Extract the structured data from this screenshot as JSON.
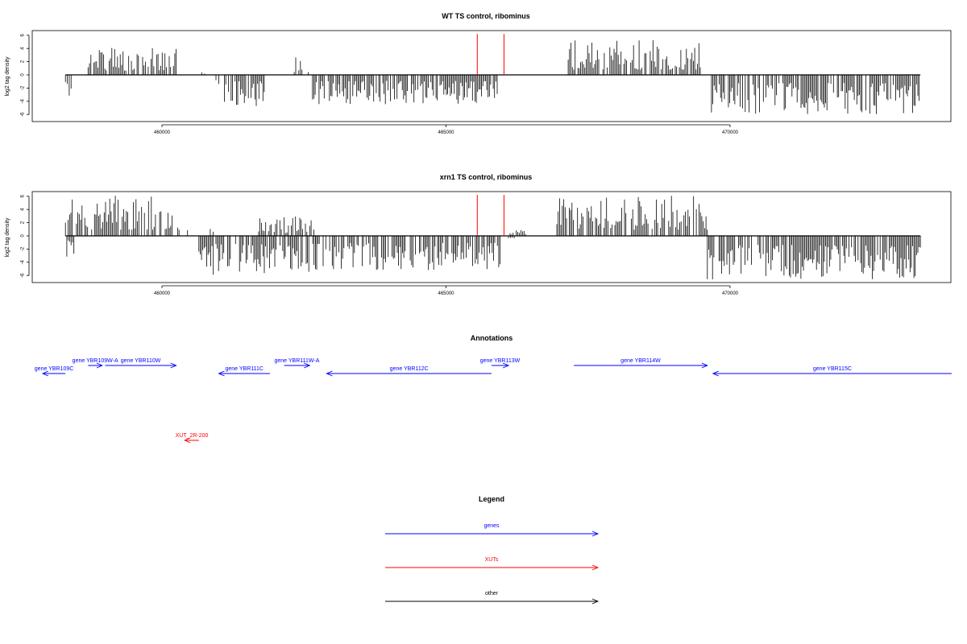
{
  "chart_data": [
    {
      "type": "bar",
      "title": "WT TS control, ribominus",
      "xlabel": "",
      "ylabel": "log2 tag density",
      "xlim": [
        457700,
        473900
      ],
      "ylim": [
        -7,
        7
      ],
      "x_ticks": [
        "460000",
        "465000",
        "470000"
      ],
      "y_ticks": [
        "-6",
        "-4",
        "-2",
        "0",
        "2",
        "4",
        "6"
      ],
      "grid": false,
      "segments_plus": [
        {
          "start": 458700,
          "end": 460250,
          "max": 4.3
        },
        {
          "start": 460700,
          "end": 460750,
          "max": 0.5
        },
        {
          "start": 462300,
          "end": 462600,
          "max": 2.8
        },
        {
          "start": 467150,
          "end": 469500,
          "max": 5.3
        }
      ],
      "segments_minus": [
        {
          "start": 458300,
          "end": 458400,
          "max": 3.5
        },
        {
          "start": 460950,
          "end": 461000,
          "max": 1.5
        },
        {
          "start": 461100,
          "end": 461800,
          "max": 4.8
        },
        {
          "start": 462650,
          "end": 465900,
          "max": 4.5
        },
        {
          "start": 469650,
          "end": 473350,
          "max": 6
        }
      ],
      "red_marks": [
        465550,
        466020
      ],
      "red_max": 6.2
    },
    {
      "type": "bar",
      "title": "xrn1 TS control, ribominus",
      "xlabel": "",
      "ylabel": "log2 tag density",
      "xlim": [
        457700,
        473900
      ],
      "ylim": [
        -7,
        7
      ],
      "x_ticks": [
        "460000",
        "465000",
        "470000"
      ],
      "y_ticks": [
        "-6",
        "-4",
        "-2",
        "0",
        "2",
        "4",
        "6"
      ],
      "grid": false,
      "segments_plus": [
        {
          "start": 458300,
          "end": 460300,
          "max": 6.1
        },
        {
          "start": 460450,
          "end": 460500,
          "max": 1.2
        },
        {
          "start": 460850,
          "end": 460900,
          "max": 3.0
        },
        {
          "start": 461700,
          "end": 462700,
          "max": 3.0
        },
        {
          "start": 466100,
          "end": 466400,
          "max": 1.0
        },
        {
          "start": 466950,
          "end": 469600,
          "max": 6.1
        }
      ],
      "segments_minus": [
        {
          "start": 458300,
          "end": 458450,
          "max": 3.5
        },
        {
          "start": 460650,
          "end": 462700,
          "max": 6.0
        },
        {
          "start": 462700,
          "end": 465950,
          "max": 5.2
        },
        {
          "start": 466100,
          "end": 466200,
          "max": 1.2
        },
        {
          "start": 469600,
          "end": 473350,
          "max": 6.8
        }
      ],
      "red_marks": [
        465550,
        466020
      ],
      "red_max": 6.2
    }
  ],
  "annotations": {
    "title": "Annotations",
    "items": [
      {
        "label": "gene YBR109C",
        "start": 458300,
        "end": 457900,
        "strand": "-",
        "row": 2,
        "color": "#0000ff"
      },
      {
        "label": "gene YBR109W-A",
        "start": 458700,
        "end": 458950,
        "strand": "+",
        "row": 1,
        "color": "#0000ff"
      },
      {
        "label": "gene YBR110W",
        "start": 459000,
        "end": 460250,
        "strand": "+",
        "row": 1,
        "color": "#0000ff"
      },
      {
        "label": "gene YBR111C",
        "start": 461900,
        "end": 461000,
        "strand": "-",
        "row": 2,
        "color": "#0000ff"
      },
      {
        "label": "gene YBR111W-A",
        "start": 462150,
        "end": 462600,
        "strand": "+",
        "row": 1,
        "color": "#0000ff"
      },
      {
        "label": "gene YBR112C",
        "start": 465800,
        "end": 462900,
        "strand": "-",
        "row": 2,
        "color": "#0000ff"
      },
      {
        "label": "gene YBR113W",
        "start": 465800,
        "end": 466100,
        "strand": "+",
        "row": 1,
        "color": "#0000ff"
      },
      {
        "label": "gene YBR114W",
        "start": 467250,
        "end": 469600,
        "strand": "+",
        "row": 1,
        "color": "#0000ff"
      },
      {
        "label": "gene YBR115C",
        "start": 473900,
        "end": 469700,
        "strand": "-",
        "row": 2,
        "color": "#0000ff"
      },
      {
        "label": "XUT_2R-200",
        "start": 460650,
        "end": 460400,
        "strand": "-",
        "row": 4,
        "color": "#ff0000"
      }
    ]
  },
  "legend": {
    "title": "Legend",
    "items": [
      {
        "label": "genes",
        "color": "#0000ff"
      },
      {
        "label": "XUTs",
        "color": "#ff0000"
      },
      {
        "label": "other",
        "color": "#000000"
      }
    ]
  }
}
